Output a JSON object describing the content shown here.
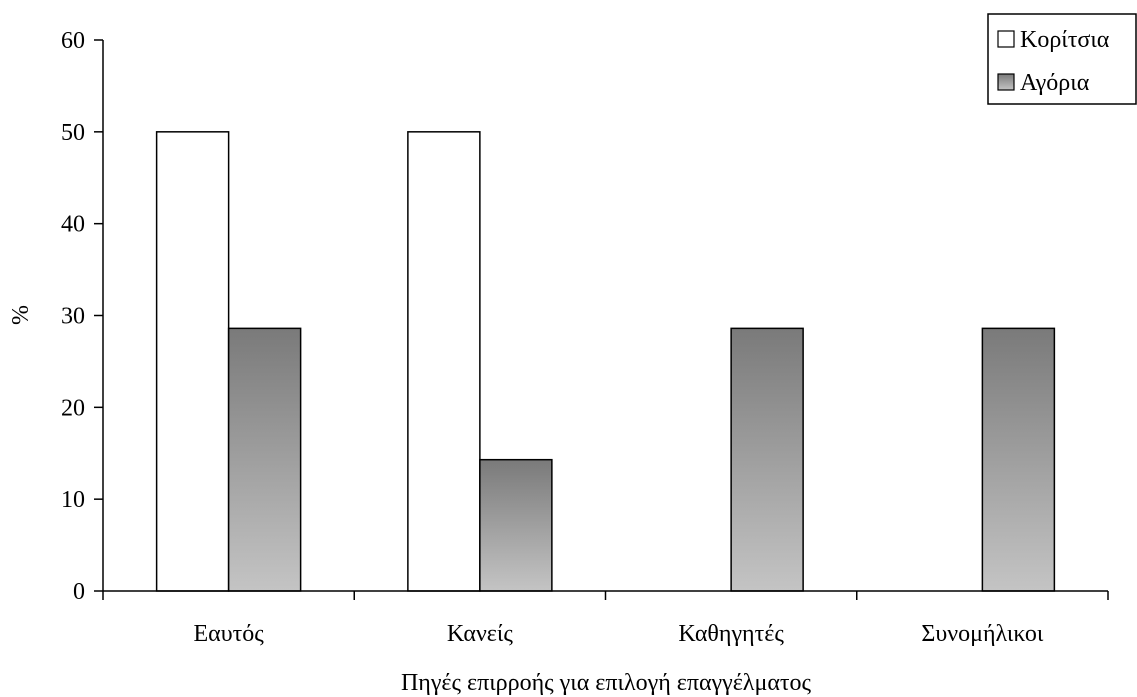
{
  "chart_data": {
    "type": "bar",
    "title": "",
    "xlabel": "Πηγές επιρροής για επιλογή επαγγέλματος",
    "ylabel": "%",
    "ylim": [
      0,
      60
    ],
    "yticks": [
      0,
      10,
      20,
      30,
      40,
      50,
      60
    ],
    "categories": [
      "Εαυτός",
      "Κανείς",
      "Καθηγητές",
      "Συνομήλικοι"
    ],
    "series": [
      {
        "name": "Κορίτσια",
        "values": [
          50,
          50,
          0,
          0
        ],
        "fill": "#ffffff"
      },
      {
        "name": "Αγόρια",
        "values": [
          28.6,
          14.3,
          28.6,
          28.6
        ],
        "fill_top": "#7a7a7a",
        "fill_bottom": "#c4c4c4"
      }
    ],
    "grid": false,
    "legend_position": "top-right"
  }
}
